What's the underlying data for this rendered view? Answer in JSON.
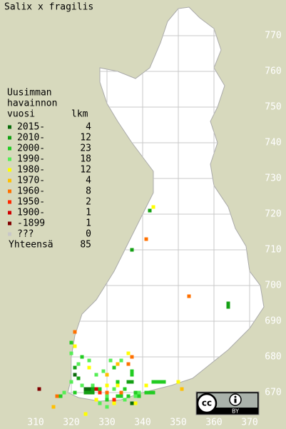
{
  "chart_data": {
    "type": "grid-map",
    "title": "Salix x fragilis",
    "legend_title": [
      "Uusimman",
      "havainnon",
      "vuosi"
    ],
    "count_header": "lkm",
    "xlim": [
      300,
      380
    ],
    "ylim": [
      660,
      780
    ],
    "xticks": [
      310,
      320,
      330,
      340,
      350,
      360,
      370
    ],
    "yticks": [
      670,
      680,
      690,
      700,
      710,
      720,
      730,
      740,
      750,
      760,
      770
    ],
    "periods": [
      {
        "label": "2015-",
        "count": 4,
        "color": "#0b6b0b",
        "squares": [
          [
            324,
            671
          ],
          [
            325,
            671
          ],
          [
            337,
            667
          ],
          [
            321,
            675
          ]
        ]
      },
      {
        "label": "2010-",
        "count": 12,
        "color": "#14a014",
        "squares": [
          [
            326,
            671
          ],
          [
            324,
            670
          ],
          [
            325,
            670
          ],
          [
            326,
            670
          ],
          [
            342,
            721
          ],
          [
            337,
            710
          ],
          [
            364,
            694
          ],
          [
            364,
            695
          ],
          [
            336,
            673
          ],
          [
            337,
            673
          ],
          [
            321,
            677
          ],
          [
            322,
            674
          ]
        ]
      },
      {
        "label": "2000-",
        "count": 23,
        "color": "#22cc22",
        "squares": [
          [
            343,
            673
          ],
          [
            344,
            673
          ],
          [
            345,
            673
          ],
          [
            346,
            673
          ],
          [
            341,
            670
          ],
          [
            343,
            670
          ],
          [
            337,
            675
          ],
          [
            337,
            676
          ],
          [
            335,
            671
          ],
          [
            334,
            669
          ],
          [
            336,
            669
          ],
          [
            333,
            669
          ],
          [
            328,
            671
          ],
          [
            323,
            680
          ],
          [
            332,
            677
          ],
          [
            338,
            670
          ],
          [
            339,
            669
          ],
          [
            320,
            684
          ],
          [
            321,
            670
          ],
          [
            317,
            669
          ],
          [
            330,
            668
          ],
          [
            342,
            670
          ],
          [
            333,
            673
          ]
        ]
      },
      {
        "label": "1990-",
        "count": 18,
        "color": "#55ee55",
        "squares": [
          [
            320,
            673
          ],
          [
            325,
            679
          ],
          [
            322,
            678
          ],
          [
            331,
            679
          ],
          [
            334,
            679
          ],
          [
            326,
            672
          ],
          [
            339,
            670
          ],
          [
            318,
            670
          ],
          [
            332,
            671
          ],
          [
            330,
            669
          ],
          [
            328,
            667
          ],
          [
            335,
            668
          ],
          [
            338,
            669
          ],
          [
            320,
            681
          ],
          [
            329,
            676
          ],
          [
            327,
            675
          ],
          [
            330,
            666
          ],
          [
            323,
            672
          ]
        ]
      },
      {
        "label": "1980-",
        "count": 12,
        "color": "#ffff00",
        "squares": [
          [
            343,
            722
          ],
          [
            336,
            681
          ],
          [
            333,
            672
          ],
          [
            327,
            668
          ],
          [
            330,
            672
          ],
          [
            324,
            664
          ],
          [
            332,
            667
          ],
          [
            341,
            672
          ],
          [
            350,
            673
          ],
          [
            325,
            677
          ],
          [
            321,
            683
          ],
          [
            338,
            667
          ]
        ]
      },
      {
        "label": "1970-",
        "count": 4,
        "color": "#ffc000",
        "squares": [
          [
            333,
            678
          ],
          [
            351,
            671
          ],
          [
            330,
            675
          ],
          [
            315,
            666
          ]
        ]
      },
      {
        "label": "1960-",
        "count": 8,
        "color": "#ff7000",
        "squares": [
          [
            341,
            713
          ],
          [
            353,
            697
          ],
          [
            321,
            687
          ],
          [
            337,
            680
          ],
          [
            336,
            678
          ],
          [
            316,
            669
          ],
          [
            330,
            670
          ],
          [
            334,
            670
          ]
        ]
      },
      {
        "label": "1950-",
        "count": 2,
        "color": "#ff2800",
        "squares": [
          [
            328,
            670
          ],
          [
            332,
            668
          ]
        ]
      },
      {
        "label": "1900-",
        "count": 1,
        "color": "#d00000",
        "squares": [
          [
            327,
            671
          ]
        ]
      },
      {
        "label": "-1899",
        "count": 1,
        "color": "#800000",
        "squares": [
          [
            311,
            671
          ]
        ]
      },
      {
        "label": "???",
        "count": 0,
        "color": "#c8c8c8",
        "squares": []
      }
    ],
    "total_label": "Yhteensä",
    "total": 85,
    "badge": {
      "cc": "cc",
      "by": "BY"
    }
  }
}
